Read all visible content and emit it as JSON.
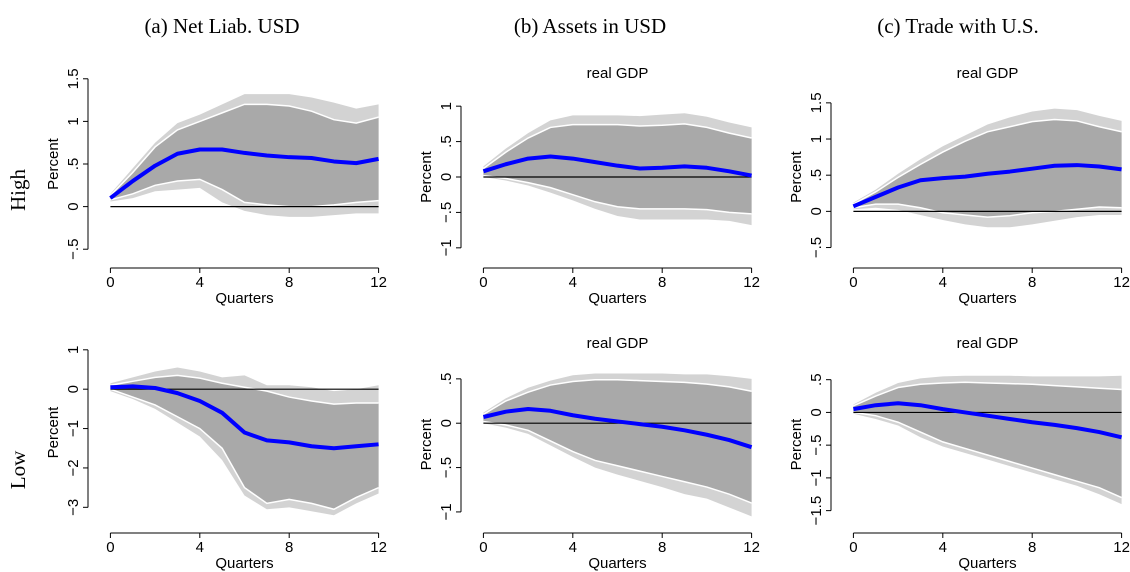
{
  "column_titles": [
    "(a) Net Liab. USD",
    "(b) Assets in USD",
    "(c) Trade with U.S."
  ],
  "row_labels": [
    "High",
    "Low"
  ],
  "chart_data": [
    {
      "type": "band-line",
      "ylabel": "Percent",
      "xlabel": "Quarters",
      "x": [
        0,
        1,
        2,
        3,
        4,
        5,
        6,
        7,
        8,
        9,
        10,
        11,
        12
      ],
      "values": [
        0.1,
        0.3,
        0.48,
        0.62,
        0.67,
        0.67,
        0.63,
        0.6,
        0.58,
        0.57,
        0.53,
        0.51,
        0.56
      ],
      "color": "#0000ff",
      "bands": [
        {
          "lower": [
            0.06,
            0.1,
            0.18,
            0.2,
            0.22,
            0.05,
            -0.05,
            -0.1,
            -0.12,
            -0.12,
            -0.1,
            -0.08,
            -0.08
          ],
          "upper": [
            0.15,
            0.45,
            0.75,
            0.98,
            1.08,
            1.2,
            1.32,
            1.32,
            1.32,
            1.28,
            1.22,
            1.15,
            1.2
          ],
          "color": "#d3d3d3"
        },
        {
          "lower": [
            0.08,
            0.15,
            0.25,
            0.3,
            0.32,
            0.2,
            0.05,
            0.02,
            0.0,
            0.0,
            0.02,
            0.05,
            0.07
          ],
          "upper": [
            0.13,
            0.4,
            0.7,
            0.9,
            1.0,
            1.1,
            1.2,
            1.2,
            1.18,
            1.12,
            1.02,
            0.98,
            1.05
          ],
          "color": "#a9a9a9",
          "edge_color": "#ffffff"
        }
      ],
      "hline": 0,
      "xlim": [
        -0.6,
        12.6
      ],
      "xticks": [
        0,
        4,
        8,
        12
      ],
      "ylim": [
        -0.65,
        1.65
      ],
      "yticks": [
        {
          "value": -0.5,
          "label": "−.5"
        },
        0,
        {
          "value": 0.5,
          "label": ".5"
        },
        1,
        1.5
      ]
    },
    {
      "type": "band-line",
      "title": "real GDP",
      "ylabel": "Percent",
      "xlabel": "Quarters",
      "x": [
        0,
        1,
        2,
        3,
        4,
        5,
        6,
        7,
        8,
        9,
        10,
        11,
        12
      ],
      "values": [
        0.08,
        0.18,
        0.26,
        0.29,
        0.26,
        0.21,
        0.16,
        0.12,
        0.13,
        0.15,
        0.13,
        0.08,
        0.02
      ],
      "color": "#0000ff",
      "bands": [
        {
          "lower": [
            0.0,
            -0.05,
            -0.12,
            -0.22,
            -0.33,
            -0.45,
            -0.55,
            -0.6,
            -0.6,
            -0.6,
            -0.6,
            -0.62,
            -0.68
          ],
          "upper": [
            0.15,
            0.4,
            0.62,
            0.8,
            0.87,
            0.87,
            0.87,
            0.86,
            0.88,
            0.9,
            0.85,
            0.77,
            0.7
          ],
          "color": "#d3d3d3"
        },
        {
          "lower": [
            0.02,
            -0.02,
            -0.08,
            -0.15,
            -0.25,
            -0.35,
            -0.42,
            -0.45,
            -0.45,
            -0.45,
            -0.46,
            -0.5,
            -0.52
          ],
          "upper": [
            0.12,
            0.35,
            0.55,
            0.7,
            0.74,
            0.74,
            0.74,
            0.72,
            0.73,
            0.75,
            0.7,
            0.62,
            0.55
          ],
          "color": "#a9a9a9",
          "edge_color": "#ffffff"
        }
      ],
      "hline": 0,
      "xlim": [
        -0.6,
        12.6
      ],
      "xticks": [
        0,
        4,
        8,
        12
      ],
      "ylim": [
        -1.2,
        1.2
      ],
      "yticks": [
        {
          "value": -1,
          "label": "−1"
        },
        {
          "value": -0.5,
          "label": "−.5"
        },
        0,
        {
          "value": 0.5,
          "label": ".5"
        },
        1
      ]
    },
    {
      "type": "band-line",
      "title": "real GDP",
      "ylabel": "Percent",
      "xlabel": "Quarters",
      "x": [
        0,
        1,
        2,
        3,
        4,
        5,
        6,
        7,
        8,
        9,
        10,
        11,
        12
      ],
      "values": [
        0.07,
        0.2,
        0.33,
        0.43,
        0.46,
        0.48,
        0.52,
        0.55,
        0.59,
        0.63,
        0.64,
        0.62,
        0.58
      ],
      "color": "#0000ff",
      "bands": [
        {
          "lower": [
            0.03,
            0.05,
            0.02,
            -0.05,
            -0.12,
            -0.18,
            -0.22,
            -0.22,
            -0.18,
            -0.13,
            -0.08,
            -0.05,
            -0.05
          ],
          "upper": [
            0.12,
            0.3,
            0.52,
            0.72,
            0.9,
            1.05,
            1.2,
            1.3,
            1.38,
            1.42,
            1.4,
            1.32,
            1.25
          ],
          "color": "#d3d3d3"
        },
        {
          "lower": [
            0.05,
            0.1,
            0.1,
            0.05,
            -0.02,
            -0.05,
            -0.08,
            -0.06,
            -0.02,
            0.0,
            0.03,
            0.06,
            0.05
          ],
          "upper": [
            0.1,
            0.27,
            0.47,
            0.65,
            0.82,
            0.97,
            1.1,
            1.17,
            1.24,
            1.27,
            1.25,
            1.17,
            1.1
          ],
          "color": "#a9a9a9",
          "edge_color": "#ffffff"
        }
      ],
      "hline": 0,
      "xlim": [
        -0.6,
        12.6
      ],
      "xticks": [
        0,
        4,
        8,
        12
      ],
      "ylim": [
        -0.7,
        1.65
      ],
      "yticks": [
        {
          "value": -0.5,
          "label": "−.5"
        },
        0,
        {
          "value": 0.5,
          "label": ".5"
        },
        1,
        1.5
      ]
    },
    {
      "type": "band-line",
      "ylabel": "Percent",
      "xlabel": "Quarters",
      "x": [
        0,
        1,
        2,
        3,
        4,
        5,
        6,
        7,
        8,
        9,
        10,
        11,
        12
      ],
      "values": [
        0.05,
        0.07,
        0.03,
        -0.1,
        -0.3,
        -0.6,
        -1.1,
        -1.3,
        -1.35,
        -1.45,
        -1.5,
        -1.45,
        -1.4
      ],
      "color": "#0000ff",
      "bands": [
        {
          "lower": [
            -0.05,
            -0.25,
            -0.5,
            -0.85,
            -1.2,
            -1.8,
            -2.7,
            -3.05,
            -3.0,
            -3.1,
            -3.2,
            -2.9,
            -2.65
          ],
          "upper": [
            0.15,
            0.3,
            0.45,
            0.55,
            0.45,
            0.3,
            0.35,
            0.1,
            0.1,
            0.05,
            -0.05,
            0.0,
            0.1
          ],
          "color": "#d3d3d3"
        },
        {
          "lower": [
            0.0,
            -0.2,
            -0.4,
            -0.7,
            -1.0,
            -1.5,
            -2.5,
            -2.9,
            -2.8,
            -2.9,
            -3.05,
            -2.75,
            -2.5
          ],
          "upper": [
            0.1,
            0.2,
            0.3,
            0.35,
            0.28,
            0.15,
            0.05,
            -0.05,
            -0.2,
            -0.3,
            -0.38,
            -0.35,
            -0.35
          ],
          "color": "#a9a9a9",
          "edge_color": "#ffffff"
        }
      ],
      "hline": 0,
      "xlim": [
        -0.6,
        12.6
      ],
      "xticks": [
        0,
        4,
        8,
        12
      ],
      "ylim": [
        -3.5,
        1.3
      ],
      "yticks": [
        {
          "value": -3,
          "label": "−3"
        },
        {
          "value": -2,
          "label": "−2"
        },
        {
          "value": -1,
          "label": "−1"
        },
        0,
        1
      ]
    },
    {
      "type": "band-line",
      "title": "real GDP",
      "ylabel": "Percent",
      "xlabel": "Quarters",
      "x": [
        0,
        1,
        2,
        3,
        4,
        5,
        6,
        7,
        8,
        9,
        10,
        11,
        12
      ],
      "values": [
        0.07,
        0.13,
        0.16,
        0.14,
        0.09,
        0.05,
        0.02,
        -0.01,
        -0.04,
        -0.08,
        -0.13,
        -0.19,
        -0.27
      ],
      "color": "#0000ff",
      "bands": [
        {
          "lower": [
            0.0,
            -0.05,
            -0.12,
            -0.25,
            -0.38,
            -0.5,
            -0.58,
            -0.65,
            -0.72,
            -0.8,
            -0.85,
            -0.95,
            -1.05
          ],
          "upper": [
            0.12,
            0.28,
            0.4,
            0.48,
            0.54,
            0.56,
            0.56,
            0.56,
            0.56,
            0.55,
            0.55,
            0.53,
            0.5
          ],
          "color": "#d3d3d3"
        },
        {
          "lower": [
            0.02,
            -0.02,
            -0.08,
            -0.2,
            -0.32,
            -0.42,
            -0.48,
            -0.54,
            -0.6,
            -0.66,
            -0.72,
            -0.8,
            -0.9
          ],
          "upper": [
            0.1,
            0.25,
            0.35,
            0.43,
            0.47,
            0.49,
            0.49,
            0.48,
            0.47,
            0.46,
            0.44,
            0.41,
            0.36
          ],
          "color": "#a9a9a9",
          "edge_color": "#ffffff"
        }
      ],
      "hline": 0,
      "xlim": [
        -0.6,
        12.6
      ],
      "xticks": [
        0,
        4,
        8,
        12
      ],
      "ylim": [
        -1.17,
        0.69
      ],
      "yticks": [
        {
          "value": -1,
          "label": "−1"
        },
        {
          "value": -0.5,
          "label": "−.5"
        },
        0,
        {
          "value": 0.5,
          "label": ".5"
        }
      ]
    },
    {
      "type": "band-line",
      "title": "real GDP",
      "ylabel": "Percent",
      "xlabel": "Quarters",
      "x": [
        0,
        1,
        2,
        3,
        4,
        5,
        6,
        7,
        8,
        9,
        10,
        11,
        12
      ],
      "values": [
        0.05,
        0.11,
        0.14,
        0.11,
        0.05,
        0.0,
        -0.05,
        -0.1,
        -0.15,
        -0.19,
        -0.24,
        -0.3,
        -0.38
      ],
      "color": "#0000ff",
      "bands": [
        {
          "lower": [
            -0.02,
            -0.1,
            -0.2,
            -0.38,
            -0.52,
            -0.62,
            -0.72,
            -0.82,
            -0.92,
            -1.02,
            -1.12,
            -1.25,
            -1.4
          ],
          "upper": [
            0.12,
            0.3,
            0.45,
            0.52,
            0.55,
            0.56,
            0.56,
            0.56,
            0.55,
            0.55,
            0.55,
            0.55,
            0.56
          ],
          "color": "#d3d3d3"
        },
        {
          "lower": [
            0.0,
            -0.05,
            -0.15,
            -0.3,
            -0.45,
            -0.55,
            -0.65,
            -0.75,
            -0.85,
            -0.95,
            -1.05,
            -1.15,
            -1.3
          ],
          "upper": [
            0.1,
            0.25,
            0.38,
            0.43,
            0.45,
            0.46,
            0.45,
            0.44,
            0.43,
            0.41,
            0.39,
            0.37,
            0.35
          ],
          "color": "#a9a9a9",
          "edge_color": "#ffffff"
        }
      ],
      "hline": 0,
      "xlim": [
        -0.6,
        12.6
      ],
      "xticks": [
        0,
        4,
        8,
        12
      ],
      "ylim": [
        -1.75,
        0.77
      ],
      "yticks": [
        {
          "value": -1.5,
          "label": "−1.5"
        },
        {
          "value": -1,
          "label": "−1"
        },
        {
          "value": -0.5,
          "label": "−.5"
        },
        0,
        {
          "value": 0.5,
          "label": ".5"
        }
      ]
    }
  ]
}
